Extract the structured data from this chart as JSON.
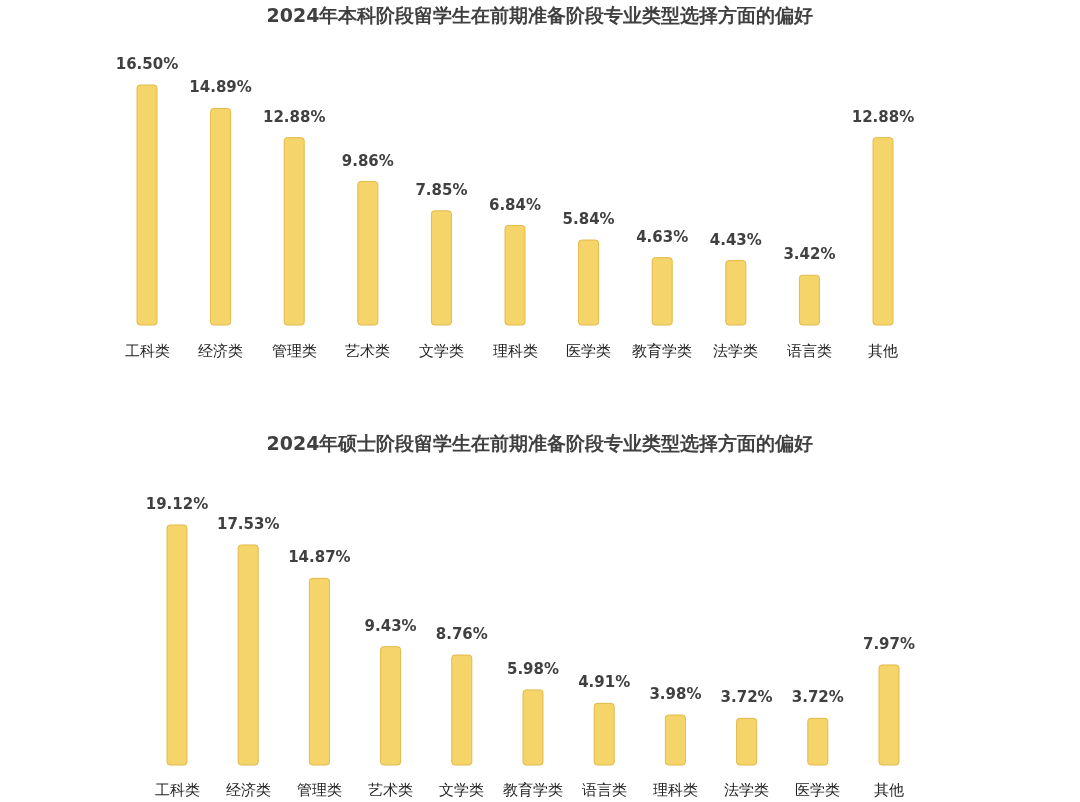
{
  "chart_data": [
    {
      "type": "bar",
      "title": "2024年本科阶段留学生在前期准备阶段专业类型选择方面的偏好",
      "categories": [
        "工科类",
        "经济类",
        "管理类",
        "艺术类",
        "文学类",
        "理科类",
        "医学类",
        "教育学类",
        "法学类",
        "语言类",
        "其他"
      ],
      "values": [
        16.5,
        14.89,
        12.88,
        9.86,
        7.85,
        6.84,
        5.84,
        4.63,
        4.43,
        3.42,
        12.88
      ],
      "value_labels": [
        "16.50%",
        "14.89%",
        "12.88%",
        "9.86%",
        "7.85%",
        "6.84%",
        "5.84%",
        "4.63%",
        "4.43%",
        "3.42%",
        "12.88%"
      ],
      "color": "#f5d46a"
    },
    {
      "type": "bar",
      "title": "2024年硕士阶段留学生在前期准备阶段专业类型选择方面的偏好",
      "categories": [
        "工科类",
        "经济类",
        "管理类",
        "艺术类",
        "文学类",
        "教育学类",
        "语言类",
        "理科类",
        "法学类",
        "医学类",
        "其他"
      ],
      "values": [
        19.12,
        17.53,
        14.87,
        9.43,
        8.76,
        5.98,
        4.91,
        3.98,
        3.72,
        3.72,
        7.97
      ],
      "value_labels": [
        "19.12%",
        "17.53%",
        "14.87%",
        "9.43%",
        "8.76%",
        "5.98%",
        "4.91%",
        "3.98%",
        "3.72%",
        "3.72%",
        "7.97%"
      ],
      "color": "#f5d46a"
    }
  ]
}
